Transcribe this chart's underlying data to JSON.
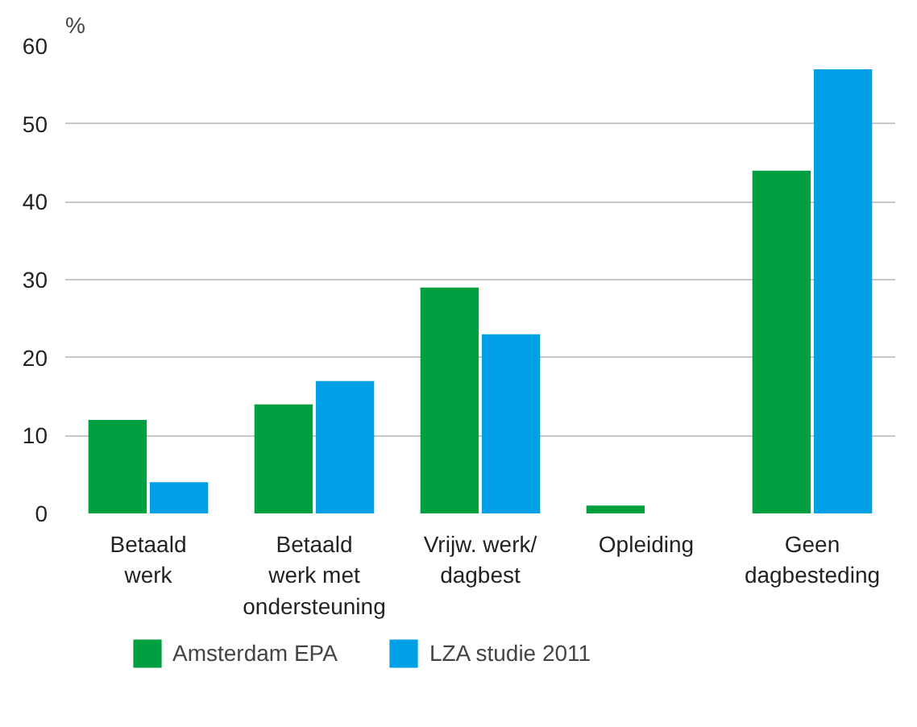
{
  "chart_data": {
    "type": "bar",
    "ylabel": "%",
    "categories": [
      "Betaald\nwerk",
      "Betaald\nwerk met\nondersteuning",
      "Vrijw. werk/\ndagbest",
      "Opleiding",
      "Geen\ndagbesteding"
    ],
    "series": [
      {
        "name": "Amsterdam EPA",
        "color": "#00a040",
        "values": [
          12,
          14,
          29,
          1,
          44
        ]
      },
      {
        "name": "LZA studie 2011",
        "color": "#00a0e6",
        "values": [
          4,
          17,
          23,
          0,
          57
        ]
      }
    ],
    "ylim": [
      0,
      60
    ],
    "yticks": [
      0,
      10,
      20,
      30,
      40,
      50,
      60
    ],
    "grid": "y",
    "legend": "bottom left"
  }
}
